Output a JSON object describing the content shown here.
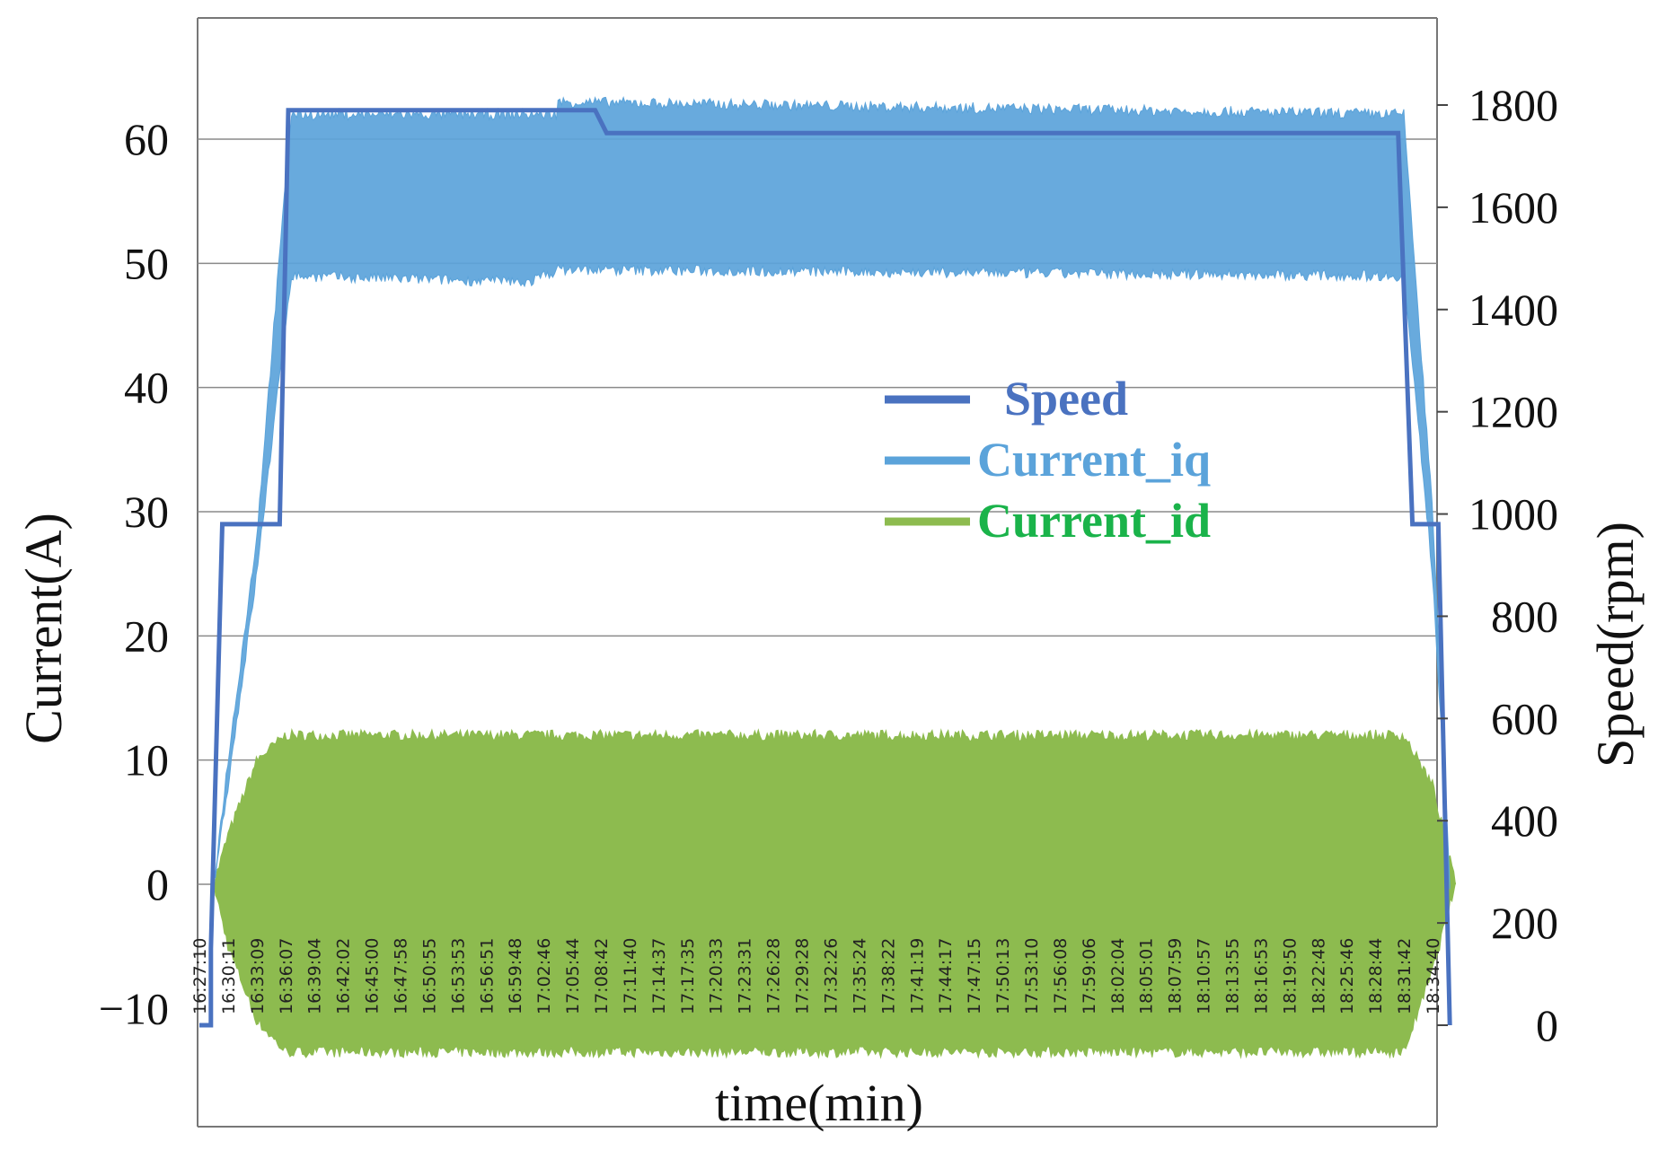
{
  "chart_data": {
    "type": "line",
    "xlabel": "time(min)",
    "ylabel_left": "Current(A)",
    "ylabel_right": "Speed(rpm)",
    "y_left_range": [
      -13,
      70
    ],
    "y_right_range": [
      -50,
      2000
    ],
    "y_left_ticks": [
      "60",
      "50",
      "40",
      "30",
      "20",
      "10",
      "0",
      "−10"
    ],
    "y_left_tick_values": [
      60,
      50,
      40,
      30,
      20,
      10,
      0,
      -10
    ],
    "y_right_ticks": [
      "1800",
      "1600",
      "1400",
      "1200",
      "1000",
      "800",
      "600",
      "400",
      "200",
      "0"
    ],
    "y_right_tick_values": [
      1800,
      1600,
      1400,
      1200,
      1000,
      800,
      600,
      400,
      200,
      0
    ],
    "x_ticks": [
      "16:27:10",
      "16:30:11",
      "16:33:09",
      "16:36:07",
      "16:39:04",
      "16:42:02",
      "16:45:00",
      "16:47:58",
      "16:50:55",
      "16:53:53",
      "16:56:51",
      "16:59:48",
      "17:02:46",
      "17:05:44",
      "17:08:42",
      "17:11:40",
      "17:14:37",
      "17:17:35",
      "17:20:33",
      "17:23:31",
      "17:26:28",
      "17:29:28",
      "17:32:26",
      "17:35:24",
      "17:38:22",
      "17:41:19",
      "17:44:17",
      "17:47:15",
      "17:50:13",
      "17:53:10",
      "17:56:08",
      "17:59:06",
      "18:02:04",
      "18:05:01",
      "18:07:59",
      "18:10:57",
      "18:13:55",
      "18:16:53",
      "18:19:50",
      "18:22:48",
      "18:25:46",
      "18:28:44",
      "18:31:42",
      "18:34:40"
    ],
    "grid": true,
    "legend_position": "center",
    "series": [
      {
        "name": "Speed",
        "axis": "right",
        "color": "#4a72c0",
        "points": [
          [
            0,
            0
          ],
          [
            0.4,
            0
          ],
          [
            0.4,
            150
          ],
          [
            0.8,
            980
          ],
          [
            2.8,
            980
          ],
          [
            3.1,
            1790
          ],
          [
            13.8,
            1790
          ],
          [
            14.2,
            1745
          ],
          [
            41.8,
            1745
          ],
          [
            42.3,
            980
          ],
          [
            43.2,
            980
          ],
          [
            43.6,
            0
          ]
        ]
      },
      {
        "name": "Current_iq",
        "axis": "left",
        "color": "#5ba3da",
        "envelope_upper": [
          [
            0.5,
            0
          ],
          [
            1.0,
            10
          ],
          [
            2.0,
            28
          ],
          [
            3.2,
            62
          ],
          [
            12.5,
            62
          ],
          [
            12.5,
            63
          ],
          [
            42.0,
            62
          ],
          [
            43.0,
            30
          ],
          [
            43.6,
            0
          ]
        ],
        "envelope_lower": [
          [
            0.5,
            0
          ],
          [
            1.0,
            8
          ],
          [
            2.0,
            25
          ],
          [
            3.2,
            49
          ],
          [
            11.5,
            48.5
          ],
          [
            12.5,
            49.5
          ],
          [
            42.0,
            49
          ],
          [
            43.0,
            25
          ],
          [
            43.6,
            0
          ]
        ]
      },
      {
        "name": "Current_id",
        "axis": "left",
        "color": "#8dbb4f",
        "envelope_upper": [
          [
            0.5,
            0
          ],
          [
            1.0,
            4
          ],
          [
            2.0,
            10
          ],
          [
            3.0,
            12
          ],
          [
            42.0,
            12
          ],
          [
            43.0,
            8
          ],
          [
            43.8,
            0
          ]
        ],
        "envelope_lower": [
          [
            0.5,
            0
          ],
          [
            1.0,
            -5
          ],
          [
            2.0,
            -11
          ],
          [
            3.0,
            -13.5
          ],
          [
            42.0,
            -13.5
          ],
          [
            43.0,
            -7
          ],
          [
            43.8,
            0
          ]
        ]
      }
    ]
  }
}
